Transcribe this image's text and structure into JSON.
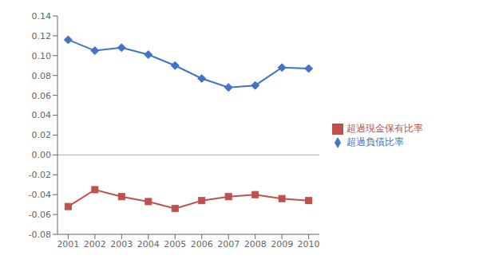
{
  "chart_data": {
    "type": "line",
    "x": [
      2001,
      2002,
      2003,
      2004,
      2005,
      2006,
      2007,
      2008,
      2009,
      2010
    ],
    "series": [
      {
        "name": "超過負債比率",
        "color": "#4472C4",
        "marker": "diamond",
        "values": [
          0.116,
          0.105,
          0.108,
          0.101,
          0.09,
          0.077,
          0.068,
          0.07,
          0.088,
          0.087
        ]
      },
      {
        "name": "超過現金保有比率",
        "color": "#C0504D",
        "marker": "square",
        "values": [
          -0.052,
          -0.035,
          -0.042,
          -0.047,
          -0.054,
          -0.046,
          -0.042,
          -0.04,
          -0.044,
          -0.046
        ]
      }
    ],
    "xlim": [
      2000.6,
      2010.4
    ],
    "xticks": [
      2001,
      2002,
      2003,
      2004,
      2005,
      2006,
      2007,
      2008,
      2009,
      2010
    ],
    "ylim": [
      -0.08,
      0.14
    ],
    "yticks": [
      -0.08,
      -0.06,
      -0.04,
      -0.02,
      {
        "value": 0,
        "label": "0.00"
      },
      0.02,
      0.04,
      0.06,
      0.08,
      {
        "value": 0.1,
        "label": "0.10"
      },
      0.12,
      0.14
    ],
    "grid": false,
    "legend": "right"
  }
}
